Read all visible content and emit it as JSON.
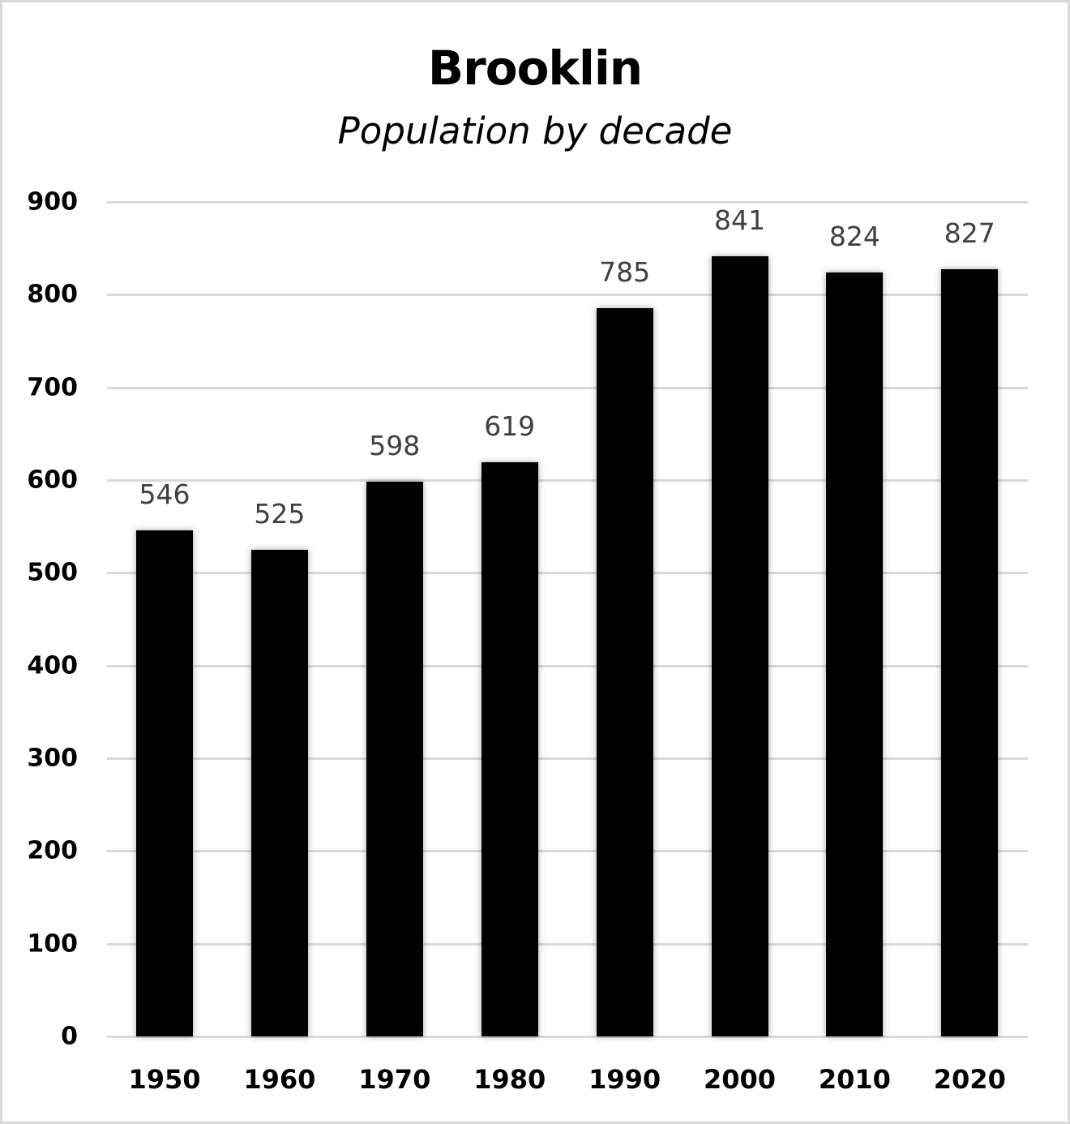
{
  "chart_data": {
    "type": "bar",
    "title": "Brooklin",
    "subtitle": "Population by decade",
    "xlabel": "",
    "ylabel": "",
    "categories": [
      "1950",
      "1960",
      "1970",
      "1980",
      "1990",
      "2000",
      "2010",
      "2020"
    ],
    "values": [
      546,
      525,
      598,
      619,
      785,
      841,
      824,
      827
    ],
    "data_labels": [
      "546",
      "525",
      "598",
      "619",
      "785",
      "841",
      "824",
      "827"
    ],
    "yticks": [
      "0",
      "100",
      "200",
      "300",
      "400",
      "500",
      "600",
      "700",
      "800",
      "900"
    ],
    "ylim": [
      0,
      900
    ],
    "grid": true,
    "legend": "none",
    "bar_color": "#000000",
    "grid_color": "#d9d9d9",
    "label_color": "#404040"
  }
}
